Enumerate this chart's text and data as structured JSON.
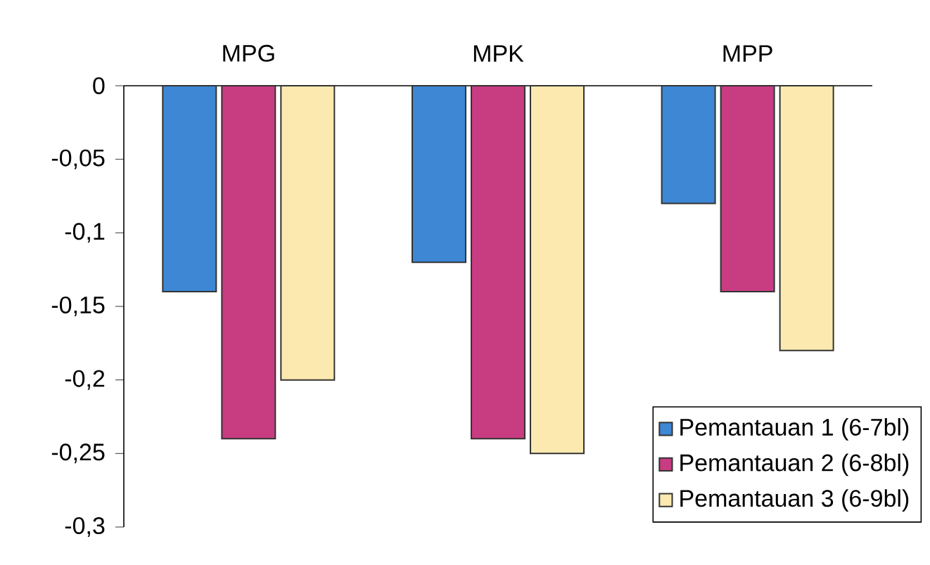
{
  "chart_data": {
    "type": "bar",
    "categories": [
      "MPG",
      "MPK",
      "MPP"
    ],
    "series": [
      {
        "name": "Pemantauan 1 (6-7bl)",
        "color": "#3d87d4",
        "values": [
          -0.14,
          -0.12,
          -0.08
        ]
      },
      {
        "name": "Pemantauan 2 (6-8bl)",
        "color": "#c83c82",
        "values": [
          -0.24,
          -0.24,
          -0.14
        ]
      },
      {
        "name": "Pemantauan 3 (6-9bl)",
        "color": "#fbe9b0",
        "values": [
          -0.2,
          -0.25,
          -0.18
        ]
      }
    ],
    "ylim": [
      -0.3,
      0
    ],
    "yticks": [
      {
        "value": -0.3,
        "label": "-0,3"
      },
      {
        "value": -0.25,
        "label": "-0,25"
      },
      {
        "value": -0.2,
        "label": "-0,2"
      },
      {
        "value": -0.15,
        "label": "-0,15"
      },
      {
        "value": -0.1,
        "label": "-0,1"
      },
      {
        "value": -0.05,
        "label": "-0,05"
      },
      0
    ],
    "legend": "bottom right"
  }
}
